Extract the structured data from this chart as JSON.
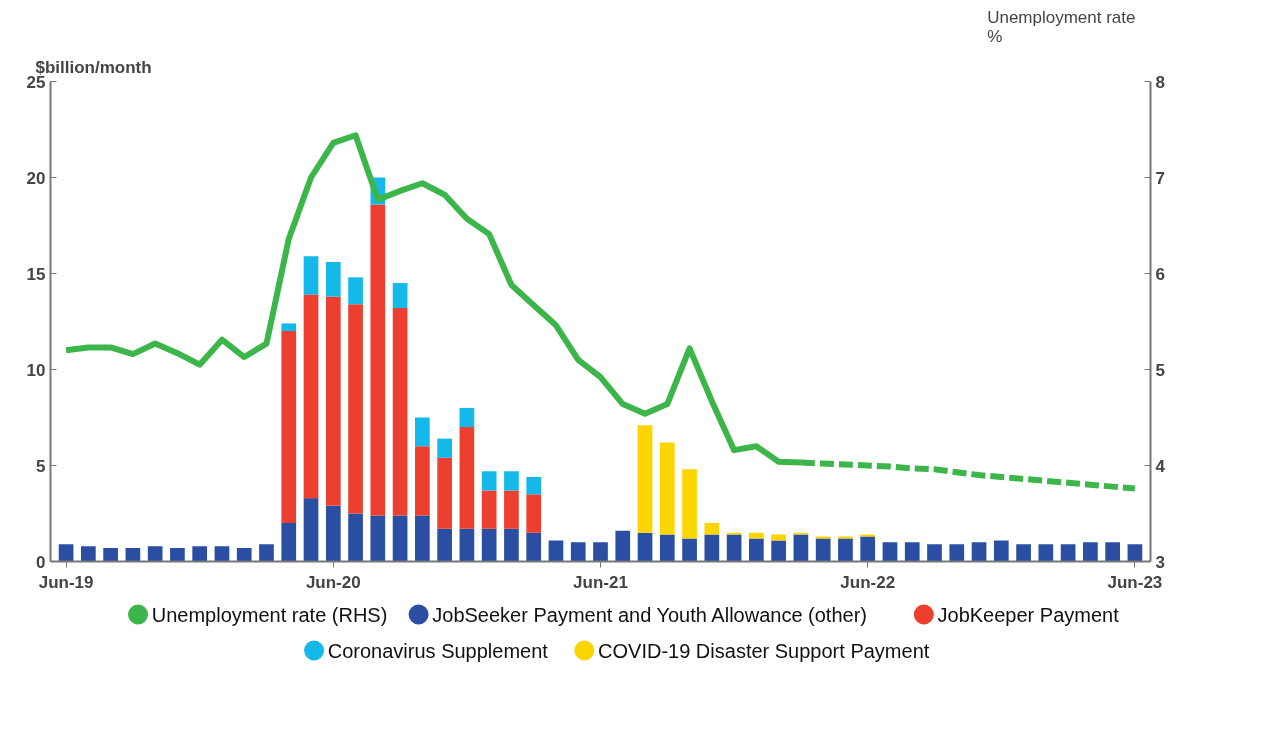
{
  "chart_data": {
    "type": "bar",
    "stacked": true,
    "ylabel": "$billion/month",
    "y2label": "Unemployment rate %",
    "categories": [
      "Jun-19",
      null,
      null,
      null,
      null,
      null,
      null,
      null,
      null,
      null,
      null,
      null,
      "Jun-20",
      null,
      null,
      null,
      null,
      null,
      null,
      null,
      null,
      null,
      null,
      null,
      "Jun-21",
      null,
      null,
      null,
      null,
      null,
      null,
      null,
      null,
      null,
      null,
      null,
      "Jun-22",
      null,
      null,
      null,
      null,
      null,
      null,
      null,
      null,
      null,
      null,
      null,
      "Jun-23"
    ],
    "series": [
      {
        "name": "Unemployment rate (RHS)",
        "type": "line",
        "axis": "y2",
        "color": "#3cb54a",
        "line_style": "solid",
        "values": [
          5.2,
          5.23,
          5.23,
          5.16,
          5.27,
          5.17,
          5.05,
          5.31,
          5.13,
          5.27,
          6.36,
          7.0,
          7.36,
          7.44,
          6.77,
          6.86,
          6.94,
          6.82,
          6.57,
          6.41,
          5.88,
          5.67,
          5.46,
          5.1,
          4.92,
          4.64,
          4.54,
          4.64,
          5.22,
          4.67,
          4.16,
          4.2,
          4.04,
          4.03,
          null,
          null,
          null,
          null,
          null,
          null,
          null,
          null,
          null,
          null,
          null,
          null,
          null,
          null,
          null
        ]
      },
      {
        "name": "JobSeeker Payment and Youth Allowance (other)",
        "color": "#2a4ea2",
        "values": [
          0.9,
          0.8,
          0.7,
          0.7,
          0.8,
          0.7,
          0.8,
          0.8,
          0.7,
          0.9,
          2.0,
          3.3,
          2.9,
          2.5,
          2.4,
          2.4,
          2.4,
          1.7,
          1.7,
          1.7,
          1.7,
          1.5,
          1.1,
          1.0,
          1.0,
          1.6,
          1.5,
          1.4,
          1.2,
          1.4,
          1.4,
          1.2,
          1.1,
          1.4,
          1.2,
          1.2,
          1.3,
          1.0,
          1.0,
          0.9,
          0.9,
          1.0,
          1.1,
          0.9,
          0.9,
          0.9,
          1.0,
          1.0,
          0.9
        ]
      },
      {
        "name": "JobKeeper Payment",
        "color": "#ec3f2f",
        "values": [
          null,
          null,
          null,
          null,
          null,
          null,
          null,
          null,
          null,
          null,
          10.0,
          10.6,
          10.9,
          10.9,
          16.2,
          10.8,
          3.6,
          3.7,
          5.3,
          2.0,
          2.0,
          2.0,
          null,
          null,
          null,
          null,
          null,
          null,
          null,
          null,
          null,
          null,
          null,
          null,
          null,
          null,
          null,
          null,
          null,
          null,
          null,
          null,
          null,
          null,
          null,
          null,
          null,
          null,
          null
        ]
      },
      {
        "name": "Coronavirus Supplement",
        "color": "#14b9ea",
        "values": [
          null,
          null,
          null,
          null,
          null,
          null,
          null,
          null,
          null,
          null,
          0.4,
          2.0,
          1.8,
          1.4,
          1.4,
          1.3,
          1.5,
          1.0,
          1.0,
          1.0,
          1.0,
          0.9,
          null,
          null,
          null,
          null,
          null,
          null,
          null,
          null,
          null,
          null,
          null,
          null,
          null,
          null,
          null,
          null,
          null,
          null,
          null,
          null,
          null,
          null,
          null,
          null,
          null,
          null,
          null
        ]
      },
      {
        "name": "COVID-19 Disaster Support Payment",
        "color": "#fcd500",
        "values": [
          null,
          null,
          null,
          null,
          null,
          null,
          null,
          null,
          null,
          null,
          null,
          null,
          null,
          null,
          null,
          null,
          null,
          null,
          null,
          null,
          null,
          null,
          null,
          null,
          null,
          null,
          5.6,
          4.8,
          3.6,
          0.6,
          0.1,
          0.3,
          0.3,
          0.1,
          0.1,
          0.1,
          0.1,
          null,
          null,
          null,
          null,
          null,
          null,
          null,
          null,
          null,
          null,
          null,
          null
        ]
      },
      {
        "type": "line",
        "axis": "y2",
        "color": "#3cb54a",
        "line_style": "dashed",
        "values": [
          null,
          null,
          null,
          null,
          null,
          null,
          null,
          null,
          null,
          null,
          null,
          null,
          null,
          null,
          null,
          null,
          null,
          null,
          null,
          null,
          null,
          null,
          null,
          null,
          null,
          null,
          null,
          null,
          null,
          null,
          null,
          null,
          null,
          4.03,
          4.02,
          4.01,
          4.0,
          3.99,
          3.97,
          3.96,
          3.93,
          3.9,
          3.88,
          3.86,
          3.84,
          3.82,
          3.8,
          3.78,
          3.76
        ]
      }
    ],
    "ylim": [
      0,
      25
    ],
    "yticks": [
      0,
      5,
      10,
      15,
      20,
      25
    ],
    "y2lim": [
      3,
      8
    ],
    "y2ticks": [
      3,
      4,
      5,
      6,
      7,
      8
    ],
    "grid": false,
    "legend": "bottom"
  }
}
